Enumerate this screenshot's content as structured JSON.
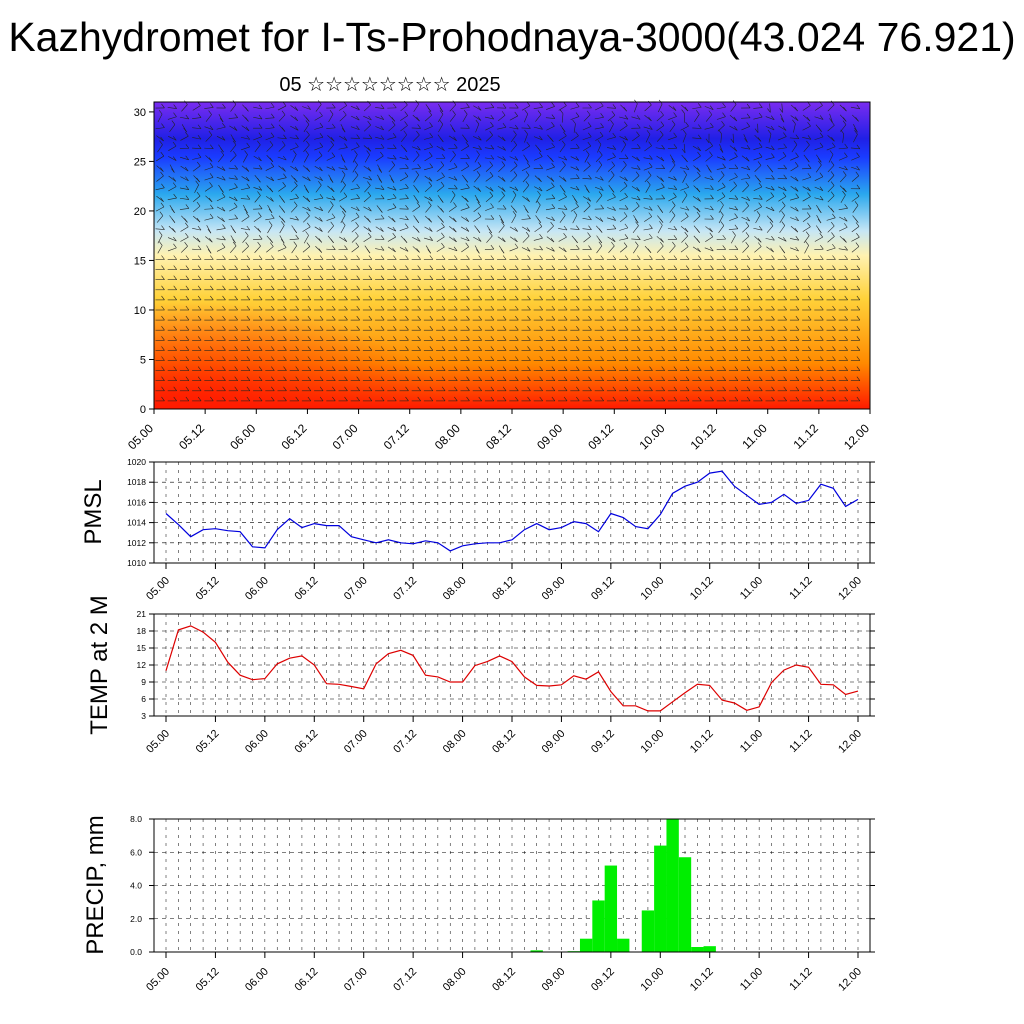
{
  "title": "Kazhydromet for I-Ts-Prohodnaya-3000(43.024 76.921)",
  "subtitle": "05 ☆☆☆☆☆☆☆☆ 2025",
  "time_labels": [
    "05.00",
    "05.12",
    "06.00",
    "06.12",
    "07.00",
    "07.12",
    "08.00",
    "08.12",
    "09.00",
    "09.12",
    "10.00",
    "10.12",
    "11.00",
    "11.12",
    "12.00"
  ],
  "colors": {
    "pmsl_line": "#0000dd",
    "temp_line": "#dd0000",
    "precip_bar": "#00ee00"
  },
  "chart_data": [
    {
      "type": "heatmap",
      "name": "vertical cross-section with wind barbs",
      "ylim": [
        0,
        31
      ],
      "yticks": [
        0,
        5,
        10,
        15,
        20,
        25,
        30
      ],
      "x_categories": [
        "05.00",
        "05.12",
        "06.00",
        "06.12",
        "07.00",
        "07.12",
        "08.00",
        "08.12",
        "09.00",
        "09.12",
        "10.00",
        "10.12",
        "11.00",
        "11.12",
        "12.00"
      ],
      "color_scale": [
        "#ff1a00",
        "#ff8a00",
        "#ffd23a",
        "#fff2b0",
        "#c6e6f5",
        "#2aa8ee",
        "#1a3cff",
        "#2020e6",
        "#7a2cf0"
      ],
      "overlay": "wind barbs"
    },
    {
      "type": "line",
      "ylabel": "PMSL",
      "ylim": [
        1010,
        1020
      ],
      "yticks": [
        1010,
        1012,
        1014,
        1016,
        1018,
        1020
      ],
      "x_start": "05.00",
      "x_step_hours": 3,
      "values": [
        1014.9,
        1013.8,
        1012.6,
        1013.3,
        1013.4,
        1013.2,
        1013.1,
        1011.6,
        1011.5,
        1013.3,
        1014.4,
        1013.5,
        1013.9,
        1013.7,
        1013.7,
        1012.6,
        1012.3,
        1012.0,
        1012.3,
        1012.0,
        1011.9,
        1012.2,
        1012.0,
        1011.2,
        1011.7,
        1011.9,
        1012.0,
        1012.0,
        1012.3,
        1013.3,
        1013.9,
        1013.3,
        1013.5,
        1014.1,
        1013.9,
        1013.1,
        1014.9,
        1014.5,
        1013.6,
        1013.4,
        1014.8,
        1016.9,
        1017.6,
        1018.0,
        1018.9,
        1019.1,
        1017.6,
        1016.7,
        1015.8,
        1016.0,
        1016.8,
        1015.9,
        1016.2,
        1017.8,
        1017.4,
        1015.6,
        1016.3
      ]
    },
    {
      "type": "line",
      "ylabel": "TEMP at 2 M",
      "ylim": [
        3,
        21
      ],
      "yticks": [
        3,
        6,
        9,
        12,
        15,
        18,
        21
      ],
      "x_start": "05.00",
      "x_step_hours": 3,
      "values": [
        11.0,
        18.2,
        18.9,
        17.8,
        16.0,
        12.5,
        10.2,
        9.4,
        9.6,
        12.2,
        13.2,
        13.6,
        12.0,
        8.7,
        8.6,
        8.2,
        7.8,
        12.2,
        14.0,
        14.6,
        13.7,
        10.2,
        9.9,
        9.0,
        9.0,
        11.9,
        12.6,
        13.6,
        12.6,
        9.9,
        8.4,
        8.3,
        8.5,
        10.1,
        9.5,
        10.8,
        7.3,
        4.8,
        4.8,
        3.9,
        3.9,
        5.5,
        7.1,
        8.6,
        8.4,
        5.8,
        5.3,
        4.0,
        4.6,
        8.9,
        11.1,
        12.0,
        11.6,
        8.6,
        8.5,
        6.8,
        7.4
      ]
    },
    {
      "type": "bar",
      "ylabel": "PRECIP, mm",
      "ylim": [
        0,
        8
      ],
      "yticks": [
        "0.0",
        "2.0",
        "4.0",
        "6.0",
        "8.0"
      ],
      "x_start": "05.00",
      "x_step_hours": 3,
      "values": [
        0,
        0,
        0,
        0,
        0,
        0,
        0,
        0,
        0,
        0,
        0,
        0,
        0,
        0,
        0,
        0,
        0,
        0,
        0,
        0,
        0,
        0,
        0,
        0,
        0,
        0,
        0,
        0,
        0,
        0,
        0.1,
        0,
        0,
        0.05,
        0.8,
        3.1,
        5.2,
        0.8,
        0,
        2.5,
        6.4,
        8.0,
        5.7,
        0.3,
        0.35,
        0,
        0,
        0,
        0,
        0,
        0,
        0,
        0,
        0,
        0,
        0,
        0
      ]
    }
  ]
}
